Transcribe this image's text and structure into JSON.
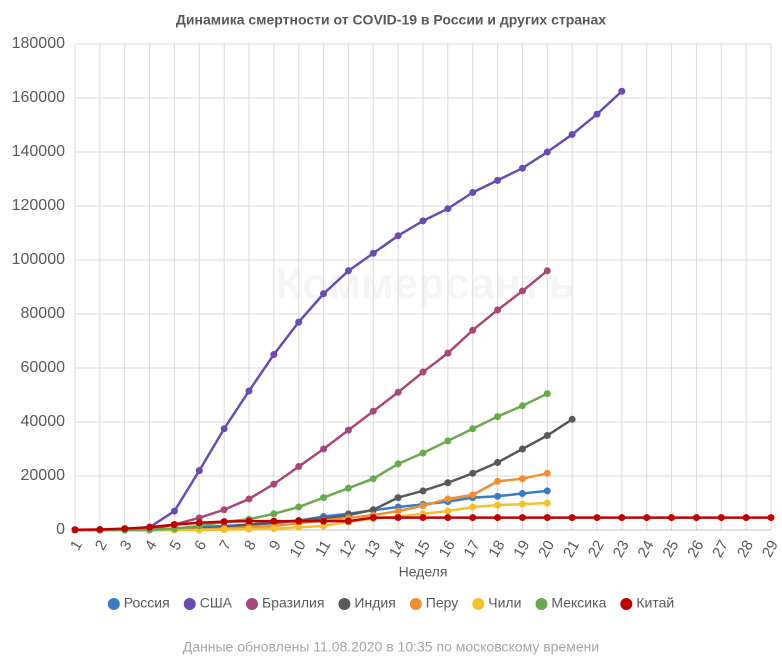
{
  "chart_data": {
    "type": "line",
    "title": "Динамика смертности от COVID-19 в России и других странах",
    "watermark": "Коммерсантъ",
    "x_label": "Неделя",
    "footnote": "Данные обновлены 11.08.2020 в 10:35 по московскому времени",
    "categories": [
      "1",
      "2",
      "3",
      "4",
      "5",
      "6",
      "7",
      "8",
      "9",
      "10",
      "11",
      "12",
      "13",
      "14",
      "15",
      "16",
      "17",
      "18",
      "19",
      "20",
      "21",
      "22",
      "23",
      "24",
      "25",
      "26",
      "27",
      "28",
      "29"
    ],
    "ylim": [
      0,
      180000
    ],
    "yticks": [
      0,
      20000,
      40000,
      60000,
      80000,
      100000,
      120000,
      140000,
      160000,
      180000
    ],
    "grid": true,
    "legend": "bottom",
    "series": [
      {
        "name": "Россия",
        "color": "#3a7cc3",
        "values": [
          0,
          0,
          0,
          100,
          400,
          1000,
          1500,
          2000,
          2500,
          3500,
          5000,
          6000,
          7300,
          8500,
          9500,
          10500,
          12000,
          12500,
          13500,
          14500,
          null,
          null,
          null,
          null,
          null,
          null,
          null,
          null,
          null
        ]
      },
      {
        "name": "США",
        "color": "#6a4bb0",
        "values": [
          0,
          0,
          100,
          1000,
          7000,
          22000,
          37500,
          51500,
          65000,
          77000,
          87500,
          96000,
          102500,
          109000,
          114500,
          119000,
          125000,
          129500,
          134000,
          140000,
          146500,
          154000,
          162500,
          null,
          null,
          null,
          null,
          null,
          null
        ]
      },
      {
        "name": "Бразилия",
        "color": "#a8487a",
        "values": [
          0,
          0,
          0,
          200,
          2000,
          4500,
          7500,
          11500,
          17000,
          23500,
          30000,
          37000,
          44000,
          51000,
          58500,
          65500,
          74000,
          81500,
          88500,
          96000,
          null,
          null,
          null,
          null,
          null,
          null,
          null,
          null,
          null
        ]
      },
      {
        "name": "Индия",
        "color": "#595959",
        "values": [
          0,
          0,
          0,
          0,
          100,
          500,
          1000,
          2000,
          2800,
          3500,
          4200,
          5500,
          7500,
          12000,
          14500,
          17500,
          21000,
          25000,
          30000,
          35000,
          41000,
          null,
          null,
          null,
          null,
          null,
          null,
          null,
          null
        ]
      },
      {
        "name": "Перу",
        "color": "#ee8f34",
        "values": [
          0,
          0,
          0,
          0,
          0,
          200,
          500,
          1000,
          1500,
          2500,
          3500,
          4500,
          5500,
          7000,
          9000,
          11500,
          13000,
          18000,
          19000,
          21000,
          null,
          null,
          null,
          null,
          null,
          null,
          null,
          null,
          null
        ]
      },
      {
        "name": "Чили",
        "color": "#f2c12e",
        "values": [
          0,
          0,
          0,
          0,
          0,
          0,
          100,
          300,
          500,
          1000,
          1500,
          3000,
          4200,
          5000,
          6000,
          7000,
          8500,
          9200,
          9600,
          10000,
          null,
          null,
          null,
          null,
          null,
          null,
          null,
          null,
          null
        ]
      },
      {
        "name": "Мексика",
        "color": "#6aaa4e",
        "values": [
          0,
          0,
          0,
          0,
          500,
          1500,
          3000,
          4000,
          6000,
          8500,
          12000,
          15500,
          19000,
          24500,
          28500,
          33000,
          37500,
          42000,
          46000,
          50500,
          null,
          null,
          null,
          null,
          null,
          null,
          null,
          null,
          null
        ]
      },
      {
        "name": "Китай",
        "color": "#c00000",
        "values": [
          100,
          200,
          500,
          1000,
          2000,
          2700,
          3100,
          3300,
          3300,
          3300,
          3300,
          3300,
          4600,
          4600,
          4600,
          4600,
          4600,
          4600,
          4600,
          4600,
          4600,
          4600,
          4600,
          4600,
          4600,
          4600,
          4600,
          4600,
          4600
        ]
      }
    ]
  }
}
